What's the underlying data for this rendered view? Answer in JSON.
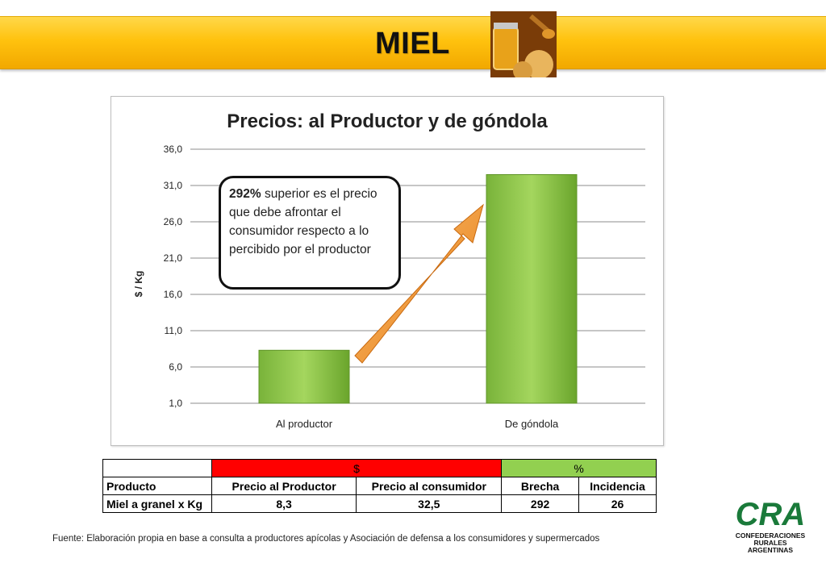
{
  "banner": {
    "title": "MIEL"
  },
  "chart_data": {
    "type": "bar",
    "title": "Precios: al Productor y de góndola",
    "ylabel": "$ / Kg",
    "xlabel": "",
    "categories": [
      "Al productor",
      "De góndola"
    ],
    "values": [
      8.3,
      32.5
    ],
    "ylim": [
      1.0,
      36.0
    ],
    "yticks": [
      "1,0",
      "6,0",
      "11,0",
      "16,0",
      "21,0",
      "26,0",
      "31,0",
      "36,0"
    ],
    "ytick_values": [
      1,
      6,
      11,
      16,
      21,
      26,
      31,
      36
    ],
    "grid": true,
    "bar_color": "#8cc63f",
    "arrow_color": "#f7941d",
    "annotation": {
      "highlight": "292%",
      "text": " superior es el precio que debe afrontar el consumidor respecto a lo percibido por el productor"
    }
  },
  "table": {
    "group_headers": {
      "money": "$",
      "percent": "%"
    },
    "columns": [
      "Producto",
      "Precio al Productor",
      "Precio al consumidor",
      "Brecha",
      "Incidencia"
    ],
    "rows": [
      [
        "Miel a granel x Kg",
        "8,3",
        "32,5",
        "292",
        "26"
      ]
    ]
  },
  "source": "Fuente: Elaboración propia en base a consulta a productores apícolas y Asociación de defensa a los consumidores y  supermercados",
  "logo": {
    "mark": "CRA",
    "line1": "CONFEDERACIONES",
    "line2": "RURALES",
    "line3": "ARGENTINAS",
    "color": "#1a7a3a"
  }
}
